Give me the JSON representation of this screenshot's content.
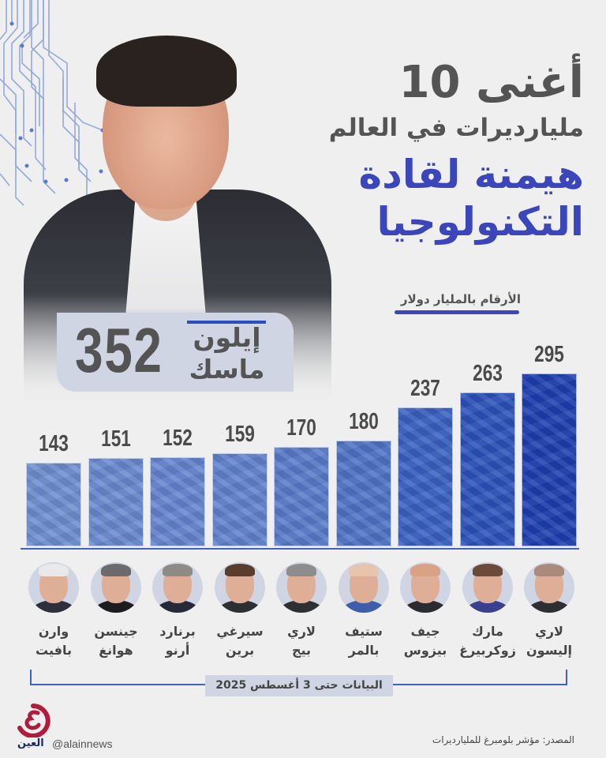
{
  "title": {
    "line1": "أغنى 10",
    "line2": "مليارديرات في العالم",
    "line3": "هيمنة لقادة",
    "line4": "التكنولوجيا",
    "unit_note": "الأرقام بالمليار دولار"
  },
  "highlight": {
    "name_line1": "إيلون",
    "name_line2": "ماسك",
    "value": "352"
  },
  "chart_data": {
    "type": "bar",
    "title": "أغنى 10 مليارديرات في العالم",
    "subtitle": "هيمنة لقادة التكنولوجيا",
    "ylabel": "الأرقام بالمليار دولار",
    "xlabel": "",
    "categories": [
      "وارن بافيت",
      "جينسن هوانغ",
      "برنارد أرنو",
      "سيرغي برين",
      "لاري بيج",
      "ستيف بالمر",
      "جيف بيزوس",
      "مارك زوكربيرغ",
      "لاري إليسون",
      "إيلون ماسك"
    ],
    "values": [
      143,
      151,
      152,
      159,
      170,
      180,
      237,
      263,
      295,
      352
    ],
    "annotations": [
      "إيلون ماسك 352 shown in highlighted box, not as bar"
    ],
    "grid": false,
    "legend": "none",
    "note": "البيانات حتى 3 أغسطس 2025"
  },
  "bars": [
    {
      "value": "143",
      "color": "#6f8fd0",
      "first": "وارن",
      "last": "بافيت",
      "hair": "#e9e9ea",
      "body": "#2d2f3a"
    },
    {
      "value": "151",
      "color": "#6a8bd0",
      "first": "جينسن",
      "last": "هوانغ",
      "hair": "#6b6b6b",
      "body": "#1d1d1f"
    },
    {
      "value": "152",
      "color": "#6686cf",
      "first": "برنارد",
      "last": "أرنو",
      "hair": "#8e8b87",
      "body": "#25293a"
    },
    {
      "value": "159",
      "color": "#6283cd",
      "first": "سيرغي",
      "last": "برين",
      "hair": "#5a3d2d",
      "body": "#2d2f33"
    },
    {
      "value": "170",
      "color": "#5a7cca",
      "first": "لاري",
      "last": "بيج",
      "hair": "#8d8d8d",
      "body": "#2d2f33"
    },
    {
      "value": "180",
      "color": "#5174c7",
      "first": "ستيف",
      "last": "بالمر",
      "hair": "#e7c4ad",
      "body": "#3d5ea8"
    },
    {
      "value": "237",
      "color": "#3a62c2",
      "first": "جيف",
      "last": "بيزوس",
      "hair": "#d9a285",
      "body": "#2b2c31"
    },
    {
      "value": "263",
      "color": "#2d53bb",
      "first": "مارك",
      "last": "زوكربيرغ",
      "hair": "#6b4a3a",
      "body": "#3a3f8f"
    },
    {
      "value": "295",
      "color": "#1e40b0",
      "first": "لاري",
      "last": "إليسون",
      "hair": "#aa8a7a",
      "body": "#2d2f33"
    }
  ],
  "footer": {
    "date_note": "البيانات حتى 3 أغسطس 2025",
    "source": "المصدر: مؤشر بلومبرغ للمليارديرات",
    "handle": "@alainnews",
    "brand": "العين",
    "brand_color": "#b01c3c"
  },
  "colors": {
    "accent": "#3a46b9",
    "background": "#efefef",
    "text": "#545454",
    "box": "#cfd5e3"
  }
}
